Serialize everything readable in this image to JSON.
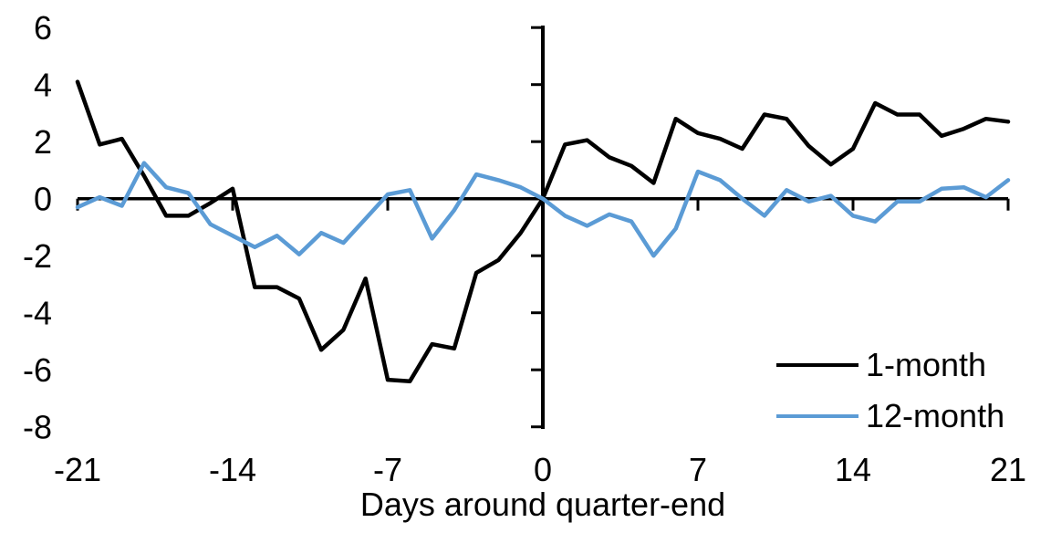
{
  "chart_data": {
    "type": "line",
    "title": "",
    "xlabel": "Days around quarter-end",
    "ylabel": "",
    "xlim": [
      -21,
      21
    ],
    "ylim": [
      -8,
      6
    ],
    "x_ticks": [
      -21,
      -14,
      -7,
      0,
      7,
      14,
      21
    ],
    "y_ticks": [
      6,
      4,
      2,
      0,
      -2,
      -4,
      -6,
      -8
    ],
    "grid": false,
    "legend_position": "inside-bottom-right",
    "axis_color": "#000000",
    "x": [
      -21,
      -20,
      -19,
      -18,
      -17,
      -16,
      -15,
      -14,
      -13,
      -12,
      -11,
      -10,
      -9,
      -8,
      -7,
      -6,
      -5,
      -4,
      -3,
      -2,
      -1,
      0,
      1,
      2,
      3,
      4,
      5,
      6,
      7,
      8,
      9,
      10,
      11,
      12,
      13,
      14,
      15,
      16,
      17,
      18,
      19,
      20,
      21
    ],
    "series": [
      {
        "name": "1-month",
        "color": "#000000",
        "values": [
          4.1,
          1.9,
          2.1,
          0.8,
          -0.6,
          -0.6,
          -0.15,
          0.35,
          -3.1,
          -3.1,
          -3.5,
          -5.3,
          -4.6,
          -2.8,
          -6.35,
          -6.4,
          -5.1,
          -5.25,
          -2.6,
          -2.15,
          -1.2,
          0,
          1.9,
          2.05,
          1.45,
          1.15,
          0.55,
          2.8,
          2.3,
          2.1,
          1.75,
          2.95,
          2.8,
          1.85,
          1.2,
          1.75,
          3.35,
          2.95,
          2.95,
          2.2,
          2.45,
          2.8,
          2.7
        ]
      },
      {
        "name": "12-month",
        "color": "#5B9BD5",
        "values": [
          -0.3,
          0.05,
          -0.25,
          1.25,
          0.4,
          0.2,
          -0.9,
          -1.3,
          -1.7,
          -1.3,
          -1.95,
          -1.2,
          -1.55,
          -0.7,
          0.15,
          0.3,
          -1.4,
          -0.4,
          0.85,
          0.65,
          0.4,
          0,
          -0.6,
          -0.95,
          -0.55,
          -0.8,
          -2.0,
          -1.05,
          0.95,
          0.65,
          0.0,
          -0.6,
          0.3,
          -0.1,
          0.1,
          -0.6,
          -0.8,
          -0.1,
          -0.1,
          0.35,
          0.4,
          0.05,
          0.65
        ]
      }
    ]
  }
}
